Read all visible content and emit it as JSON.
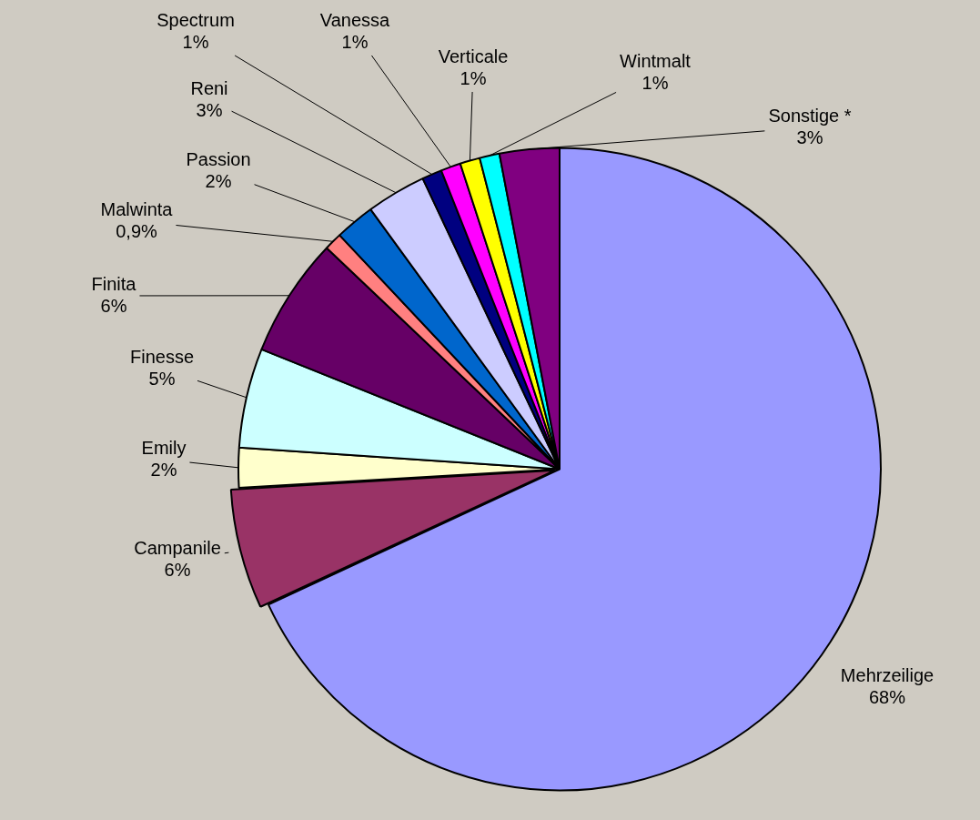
{
  "chart_data": {
    "type": "pie",
    "categories": [
      "Mehrzeilige",
      "Campanile",
      "Emily",
      "Finesse",
      "Finita",
      "Malwinta",
      "Passion",
      "Reni",
      "Spectrum",
      "Vanessa",
      "Verticale",
      "Wintmalt",
      "Sonstige *"
    ],
    "values": [
      68,
      6,
      2,
      5,
      6,
      0.9,
      2,
      3,
      1,
      1,
      1,
      1,
      3
    ],
    "value_labels": [
      "68%",
      "6%",
      "2%",
      "5%",
      "6%",
      "0,9%",
      "2%",
      "3%",
      "1%",
      "1%",
      "1%",
      "1%",
      "3%"
    ],
    "colors": [
      "#9999FF",
      "#993366",
      "#FFFFCC",
      "#CCFFFF",
      "#660066",
      "#FF8080",
      "#0066CC",
      "#CCCCFF",
      "#000080",
      "#FF00FF",
      "#FFFF00",
      "#00FFFF",
      "#800080"
    ],
    "data_labels": true
  }
}
